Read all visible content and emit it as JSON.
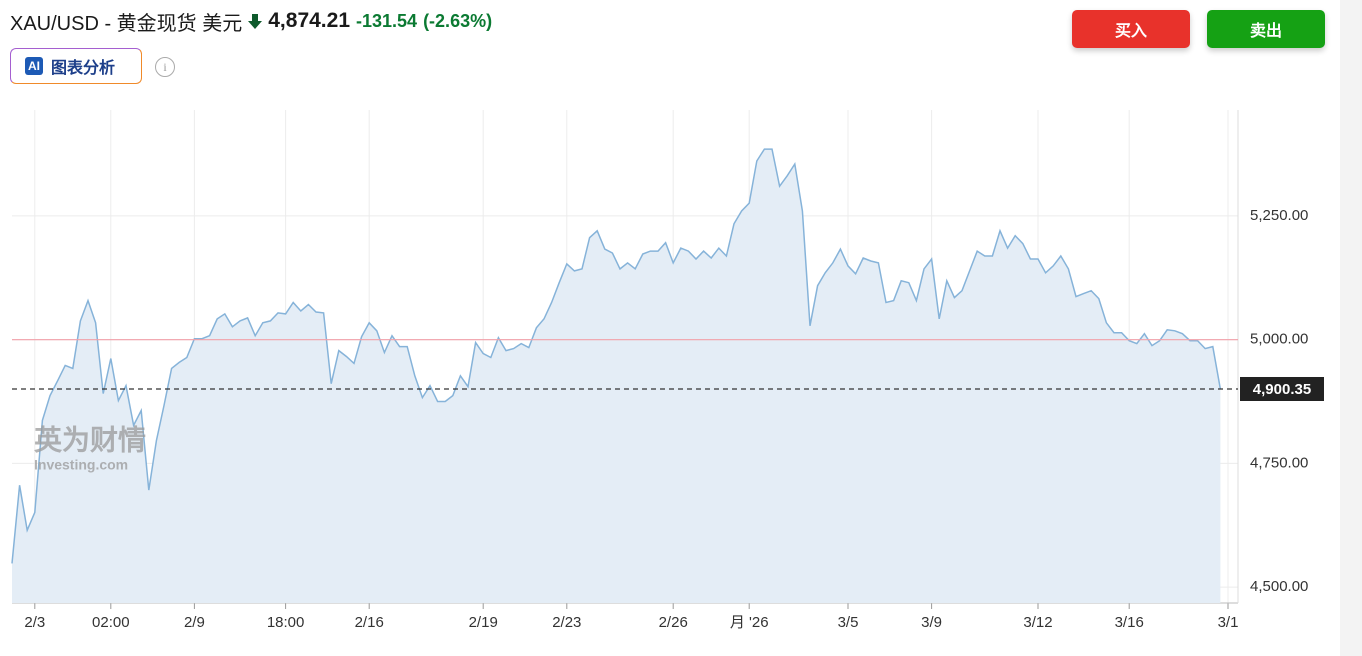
{
  "header": {
    "title": "XAU/USD - 黄金现货 美元",
    "price": "4,874.21",
    "change": "-131.54",
    "change_pct": "(-2.63%)",
    "buy": "买入",
    "sell": "卖出",
    "ai_badge": "AI",
    "ai_label": "图表分析",
    "info": "i"
  },
  "watermark": {
    "brand": "英为财情",
    "site": "Investing.com"
  },
  "chart_data": {
    "type": "area",
    "categories": [
      null,
      null,
      null,
      "2/3",
      null,
      null,
      null,
      null,
      null,
      null,
      null,
      null,
      null,
      "02:00",
      null,
      null,
      null,
      null,
      null,
      null,
      null,
      null,
      null,
      null,
      "2/9",
      null,
      null,
      null,
      null,
      null,
      null,
      null,
      null,
      null,
      null,
      null,
      "18:00",
      null,
      null,
      null,
      null,
      null,
      null,
      null,
      null,
      null,
      null,
      "2/16",
      null,
      null,
      null,
      null,
      null,
      null,
      null,
      null,
      null,
      null,
      null,
      null,
      null,
      null,
      "2/19",
      null,
      null,
      null,
      null,
      null,
      null,
      null,
      null,
      null,
      null,
      "2/23",
      null,
      null,
      null,
      null,
      null,
      null,
      null,
      null,
      null,
      null,
      null,
      null,
      null,
      "2/26",
      null,
      null,
      null,
      null,
      null,
      null,
      null,
      null,
      null,
      "月 '26",
      null,
      null,
      null,
      null,
      null,
      null,
      null,
      null,
      null,
      null,
      null,
      null,
      "3/5",
      null,
      null,
      null,
      null,
      null,
      null,
      null,
      null,
      null,
      null,
      "3/9",
      null,
      null,
      null,
      null,
      null,
      null,
      null,
      null,
      null,
      null,
      null,
      null,
      null,
      "3/12",
      null,
      null,
      null,
      null,
      null,
      null,
      null,
      null,
      null,
      null,
      null,
      "3/16",
      null,
      null,
      null,
      null,
      null,
      null,
      null,
      null,
      null,
      null,
      null,
      null,
      "3/1"
    ],
    "series": [
      {
        "color": "#86b3d9",
        "fill": "#e4edf6",
        "values": [
          4548,
          4706,
          4615,
          4651,
          4837,
          4887,
          4917,
          4948,
          4942,
          5038,
          5079,
          5034,
          4891,
          4962,
          4877,
          4907,
          4827,
          4857,
          4696,
          4796,
          4867,
          4942,
          4954,
          4964,
          5002,
          5002,
          5008,
          5042,
          5052,
          5026,
          5038,
          5044,
          5008,
          5034,
          5038,
          5054,
          5052,
          5075,
          5058,
          5071,
          5056,
          5054,
          4911,
          4978,
          4966,
          4952,
          5006,
          5034,
          5018,
          4974,
          5008,
          4986,
          4986,
          4927,
          4883,
          4907,
          4875,
          4875,
          4887,
          4927,
          4905,
          4994,
          4972,
          4964,
          5004,
          4978,
          4982,
          4992,
          4984,
          5024,
          5042,
          5075,
          5115,
          5153,
          5139,
          5143,
          5206,
          5220,
          5183,
          5175,
          5143,
          5155,
          5143,
          5173,
          5179,
          5179,
          5196,
          5155,
          5185,
          5179,
          5163,
          5179,
          5165,
          5185,
          5169,
          5234,
          5260,
          5276,
          5361,
          5385,
          5385,
          5310,
          5331,
          5355,
          5260,
          5028,
          5109,
          5135,
          5155,
          5183,
          5149,
          5133,
          5165,
          5159,
          5155,
          5075,
          5079,
          5119,
          5115,
          5079,
          5143,
          5163,
          5042,
          5119,
          5085,
          5099,
          5139,
          5179,
          5169,
          5169,
          5220,
          5185,
          5210,
          5194,
          5163,
          5163,
          5135,
          5149,
          5169,
          5143,
          5087,
          5093,
          5099,
          5083,
          5034,
          5014,
          5014,
          4998,
          4992,
          5012,
          4988,
          4998,
          5020,
          5018,
          5012,
          4998,
          4998,
          4982,
          4986,
          4900,
          null
        ]
      }
    ],
    "ylim": [
      4468,
      5464
    ],
    "yticks": [
      {
        "value": 4500,
        "label": "4,500.00"
      },
      {
        "value": 4750,
        "label": "4,750.00"
      },
      {
        "value": 5000,
        "label": "5,000.00"
      },
      {
        "value": 5250,
        "label": "5,250.00"
      }
    ],
    "last_price": {
      "value": 4900.35,
      "label": "4,900.35"
    },
    "reference_line": {
      "value": 5000,
      "color": "#f2a0a8"
    },
    "grid": true
  }
}
